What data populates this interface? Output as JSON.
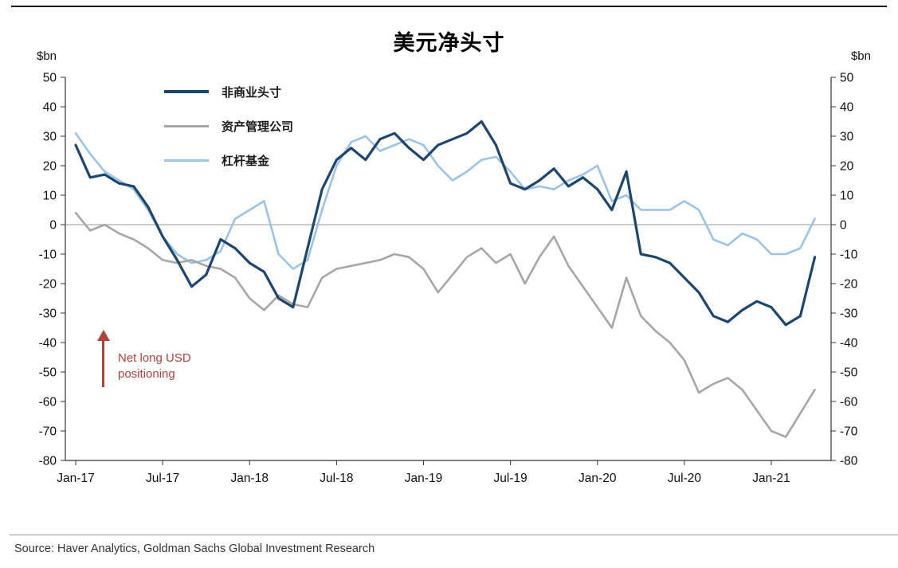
{
  "title": "美元净头寸",
  "y_axis_unit": "$bn",
  "source": "Source: Haver Analytics, Goldman Sachs Global Investment Research",
  "chart_data": {
    "type": "line",
    "title": "美元净头寸",
    "xlabel": "",
    "ylabel": "$bn",
    "ylim": [
      -80,
      50
    ],
    "yticks": [
      50,
      40,
      30,
      20,
      10,
      0,
      -10,
      -20,
      -30,
      -40,
      -50,
      -60,
      -70,
      -80
    ],
    "grid": false,
    "zero_line": true,
    "legend_position": "top-left",
    "x_frequency": "monthly",
    "x_start": "Jan-17",
    "x_end": "Apr-21",
    "x_ticks": [
      {
        "label": "Jan-17",
        "index": 0
      },
      {
        "label": "Jul-17",
        "index": 6
      },
      {
        "label": "Jan-18",
        "index": 12
      },
      {
        "label": "Jul-18",
        "index": 18
      },
      {
        "label": "Jan-19",
        "index": 24
      },
      {
        "label": "Jul-19",
        "index": 30
      },
      {
        "label": "Jan-20",
        "index": 36
      },
      {
        "label": "Jul-20",
        "index": 42
      },
      {
        "label": "Jan-21",
        "index": 48
      }
    ],
    "series": [
      {
        "name": "非商业头寸",
        "color": "#1c4670",
        "values": [
          27,
          16,
          17,
          14,
          13,
          6,
          -4,
          -12,
          -21,
          -17,
          -5,
          -8,
          -13,
          -16,
          -25,
          -28,
          -8,
          12,
          22,
          26,
          22,
          29,
          31,
          26,
          22,
          27,
          29,
          31,
          35,
          27,
          14,
          12,
          15,
          19,
          13,
          16,
          12,
          5,
          18,
          -10,
          -11,
          -13,
          -18,
          -23,
          -31,
          -33,
          -29,
          -26,
          -28,
          -34,
          -31,
          -11
        ]
      },
      {
        "name": "资产管理公司",
        "color": "#a6a6a6",
        "values": [
          4,
          -2,
          0,
          -3,
          -5,
          -8,
          -12,
          -13,
          -12,
          -14,
          -15,
          -18,
          -25,
          -29,
          -24,
          -27,
          -28,
          -18,
          -15,
          -14,
          -13,
          -12,
          -10,
          -11,
          -15,
          -23,
          -17,
          -11,
          -8,
          -13,
          -10,
          -20,
          -11,
          -4,
          -14,
          -21,
          -28,
          -35,
          -18,
          -31,
          -36,
          -40,
          -46,
          -57,
          -54,
          -52,
          -56,
          -63,
          -70,
          -72,
          -64,
          -56
        ]
      },
      {
        "name": "杠杆基金",
        "color": "#9cc3e5",
        "values": [
          31,
          24,
          18,
          15,
          12,
          5,
          -4,
          -10,
          -13,
          -12,
          -9,
          2,
          5,
          8,
          -10,
          -15,
          -12,
          5,
          20,
          28,
          30,
          25,
          27,
          29,
          27,
          20,
          15,
          18,
          22,
          23,
          18,
          12,
          13,
          12,
          15,
          17,
          20,
          8,
          10,
          5,
          5,
          5,
          8,
          5,
          -5,
          -7,
          -3,
          -5,
          -10,
          -10,
          -8,
          2
        ]
      }
    ],
    "annotation": {
      "text": "Net long USD positioning",
      "lines": [
        "Net long USD",
        "positioning"
      ],
      "color": "#b2413c"
    }
  }
}
